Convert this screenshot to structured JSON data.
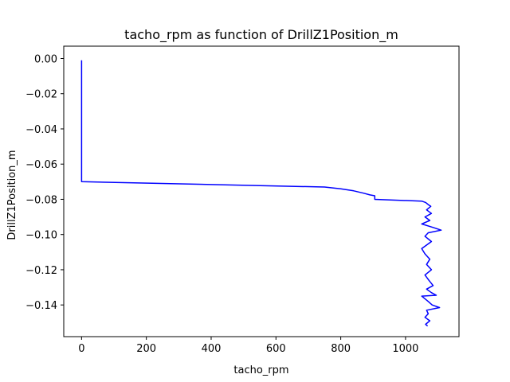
{
  "chart_data": {
    "type": "line",
    "title": "tacho_rpm as function of DrillZ1Position_m",
    "xlabel": "tacho_rpm",
    "ylabel": "DrillZ1Position_m",
    "xlim": [
      -55,
      1165
    ],
    "ylim": [
      -0.158,
      0.007
    ],
    "xticks": [
      0,
      200,
      400,
      600,
      800,
      1000
    ],
    "yticks": [
      0.0,
      -0.02,
      -0.04,
      -0.06,
      -0.08,
      -0.1,
      -0.12,
      -0.14
    ],
    "ytick_labels": [
      "0.00",
      "−0.02",
      "−0.04",
      "−0.06",
      "−0.08",
      "−0.10",
      "−0.12",
      "−0.14"
    ],
    "grid": false,
    "series": [
      {
        "color": "#0000ff",
        "x": [
          0,
          0,
          0,
          750,
          800,
          840,
          870,
          890,
          900,
          905,
          905,
          1050,
          1062,
          1070,
          1078,
          1065,
          1080,
          1060,
          1075,
          1050,
          1085,
          1110,
          1070,
          1060,
          1080,
          1050,
          1060,
          1075,
          1065,
          1080,
          1060,
          1072,
          1085,
          1065,
          1080,
          1095,
          1050,
          1070,
          1082,
          1105,
          1065,
          1070,
          1060,
          1075,
          1062,
          1068
        ],
        "y": [
          -0.001,
          -0.06,
          -0.07,
          -0.073,
          -0.074,
          -0.0752,
          -0.0765,
          -0.0775,
          -0.0778,
          -0.078,
          -0.08,
          -0.081,
          -0.0818,
          -0.083,
          -0.084,
          -0.086,
          -0.088,
          -0.09,
          -0.092,
          -0.094,
          -0.096,
          -0.0975,
          -0.099,
          -0.101,
          -0.104,
          -0.108,
          -0.111,
          -0.114,
          -0.117,
          -0.12,
          -0.123,
          -0.126,
          -0.129,
          -0.131,
          -0.133,
          -0.1345,
          -0.135,
          -0.138,
          -0.14,
          -0.1415,
          -0.143,
          -0.145,
          -0.147,
          -0.149,
          -0.151,
          -0.152
        ]
      }
    ]
  }
}
